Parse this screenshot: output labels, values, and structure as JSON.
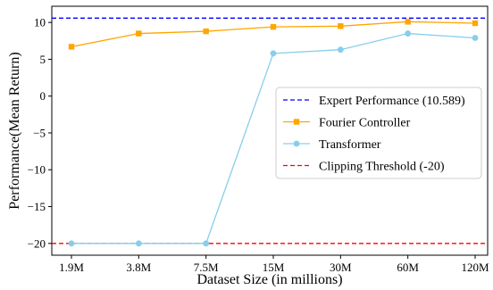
{
  "chart_data": {
    "type": "line",
    "title": "",
    "xlabel": "Dataset Size (in millions)",
    "ylabel": "Performance(Mean Return)",
    "categories": [
      "1.9M",
      "3.8M",
      "7.5M",
      "15M",
      "30M",
      "60M",
      "120M"
    ],
    "ylim": [
      -21.6,
      12.2
    ],
    "yticks": [
      -20,
      -15,
      -10,
      -5,
      0,
      5,
      10
    ],
    "ytick_labels": [
      "−20",
      "−15",
      "−10",
      "−5",
      "0",
      "5",
      "10"
    ],
    "grid": false,
    "legend_position": "center-right",
    "series": [
      {
        "name": "Fourier Controller",
        "kind": "line",
        "color": "#ffa500",
        "marker": "square",
        "values": [
          6.7,
          8.5,
          8.8,
          9.4,
          9.5,
          10.1,
          9.9
        ]
      },
      {
        "name": "Transformer",
        "kind": "line",
        "color": "#87ceeb",
        "marker": "circle",
        "values": [
          -20,
          -20,
          -20,
          5.8,
          6.3,
          8.5,
          7.9
        ]
      }
    ],
    "reference_lines": [
      {
        "name": "Expert Performance (10.589)",
        "value": 10.589,
        "color": "#0000ff",
        "dash": "dashed"
      },
      {
        "name": "Clipping Threshold (-20)",
        "value": -20,
        "color": "#ff0000",
        "dash": "dashed"
      }
    ],
    "legend": [
      {
        "label": "Expert Performance (10.589)",
        "color": "#0000ff",
        "style": "dashed",
        "marker": "none"
      },
      {
        "label": "Fourier Controller",
        "color": "#ffa500",
        "style": "solid",
        "marker": "square"
      },
      {
        "label": "Transformer",
        "color": "#87ceeb",
        "style": "solid",
        "marker": "circle"
      },
      {
        "label": "Clipping Threshold (-20)",
        "color": "#ff0000",
        "style": "dashed",
        "marker": "none"
      }
    ]
  }
}
